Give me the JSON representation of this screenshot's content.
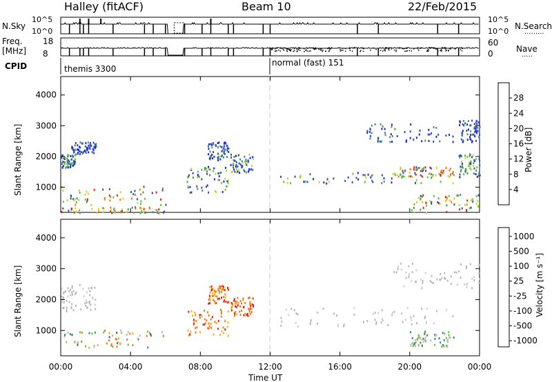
{
  "header": {
    "station": "Halley (fitACF)",
    "beam": "Beam 10",
    "date": "22/Feb/2015"
  },
  "summary": {
    "nsky_label": "N.Sky",
    "nsky_ticks": [
      "10^5",
      "10^0"
    ],
    "nsearch_label": "N.Search",
    "nsearch_ticks": [
      "10^5",
      "10^0"
    ],
    "freq_label": "Freq.",
    "freq_unit": "[MHz]",
    "freq_ticks": [
      "18",
      "8"
    ],
    "nave_label": "Nave",
    "nave_ticks": [
      "60",
      "0"
    ],
    "cpid_label": "CPID",
    "cpid_segments": [
      {
        "name": "themis 3300",
        "start_h": 0.0
      },
      {
        "name": "normal (fast) 151",
        "start_h": 12.0
      }
    ]
  },
  "colors": {
    "power_bar": [
      "#1e22ee",
      "#2a4fb0",
      "#4a8e6e",
      "#60c040",
      "#b8d640",
      "#f0c020",
      "#f07818",
      "#e02010"
    ],
    "velocity_bar": [
      "#1f2fc8",
      "#2a5ca8",
      "#3a8a6a",
      "#62c230",
      "#c0c0c0",
      "#f5b020",
      "#f07818",
      "#e02010"
    ],
    "ground_scatter": "#b8b8b8"
  },
  "chart_data": [
    {
      "type": "heatmap",
      "name": "power",
      "ylabel": "Slant Range [km]",
      "xlabel": "",
      "x_ticks": [
        "00:00",
        "04:00",
        "08:00",
        "12:00",
        "16:00",
        "20:00",
        "00:00"
      ],
      "xlim_hours": [
        0,
        24
      ],
      "ylim_km": [
        180,
        4600
      ],
      "y_ticks": [
        1000,
        2000,
        3000,
        4000
      ],
      "colorbar": {
        "label": "Power [dB]",
        "range": [
          0,
          32
        ],
        "ticks": [
          "4",
          "8",
          "12",
          "16",
          "20",
          "24",
          "28"
        ]
      },
      "echo_regions": [
        {
          "t0": 0.0,
          "t1": 0.8,
          "r0": 1650,
          "r1": 2100,
          "level": "mid-low"
        },
        {
          "t0": 0.6,
          "t1": 2.0,
          "r0": 2100,
          "r1": 2500,
          "level": "low"
        },
        {
          "t0": 0.0,
          "t1": 6.0,
          "r0": 450,
          "r1": 1050,
          "level": "high"
        },
        {
          "t0": 0.0,
          "t1": 6.0,
          "r0": 180,
          "r1": 380,
          "level": "high"
        },
        {
          "t0": 7.2,
          "t1": 9.6,
          "r0": 850,
          "r1": 1700,
          "level": "mixed"
        },
        {
          "t0": 8.4,
          "t1": 9.6,
          "r0": 1900,
          "r1": 2500,
          "level": "low"
        },
        {
          "t0": 9.7,
          "t1": 11.0,
          "r0": 1500,
          "r1": 2100,
          "level": "mixed"
        },
        {
          "t0": 12.5,
          "t1": 22.5,
          "r0": 1150,
          "r1": 1500,
          "level": "mixed"
        },
        {
          "t0": 19.0,
          "t1": 22.5,
          "r0": 1350,
          "r1": 1700,
          "level": "high"
        },
        {
          "t0": 17.5,
          "t1": 22.5,
          "r0": 2500,
          "r1": 3100,
          "level": "low"
        },
        {
          "t0": 22.8,
          "t1": 24.0,
          "r0": 2500,
          "r1": 3200,
          "level": "low"
        },
        {
          "t0": 22.8,
          "t1": 24.0,
          "r0": 1300,
          "r1": 2100,
          "level": "mixed"
        },
        {
          "t0": 20.0,
          "t1": 24.0,
          "r0": 180,
          "r1": 800,
          "level": "high"
        }
      ]
    },
    {
      "type": "heatmap",
      "name": "velocity",
      "ylabel": "Slant Range [km]",
      "xlabel": "Time UT",
      "x_ticks": [
        "00:00",
        "04:00",
        "08:00",
        "12:00",
        "16:00",
        "20:00",
        "00:00"
      ],
      "xlim_hours": [
        0,
        24
      ],
      "ylim_km": [
        180,
        4600
      ],
      "y_ticks": [
        1000,
        2000,
        3000,
        4000
      ],
      "colorbar": {
        "label": "Velocity [m s⁻¹]",
        "ticks": [
          "1000",
          "500",
          "100",
          "25",
          "-25",
          "-100",
          "-500",
          "-1000"
        ]
      },
      "echo_regions": [
        {
          "t0": 0.0,
          "t1": 2.0,
          "r0": 1650,
          "r1": 2500,
          "level": "ground"
        },
        {
          "t0": 0.0,
          "t1": 6.0,
          "r0": 450,
          "r1": 1050,
          "level": "mixed-green"
        },
        {
          "t0": 7.2,
          "t1": 9.6,
          "r0": 850,
          "r1": 1700,
          "level": "orange"
        },
        {
          "t0": 8.4,
          "t1": 9.6,
          "r0": 1900,
          "r1": 2500,
          "level": "orange"
        },
        {
          "t0": 9.7,
          "t1": 11.0,
          "r0": 1500,
          "r1": 2100,
          "level": "orange"
        },
        {
          "t0": 12.5,
          "t1": 22.5,
          "r0": 1150,
          "r1": 1800,
          "level": "ground"
        },
        {
          "t0": 19.0,
          "t1": 24.0,
          "r0": 2400,
          "r1": 3200,
          "level": "ground"
        },
        {
          "t0": 20.0,
          "t1": 22.5,
          "r0": 500,
          "r1": 1000,
          "level": "green"
        }
      ]
    }
  ]
}
